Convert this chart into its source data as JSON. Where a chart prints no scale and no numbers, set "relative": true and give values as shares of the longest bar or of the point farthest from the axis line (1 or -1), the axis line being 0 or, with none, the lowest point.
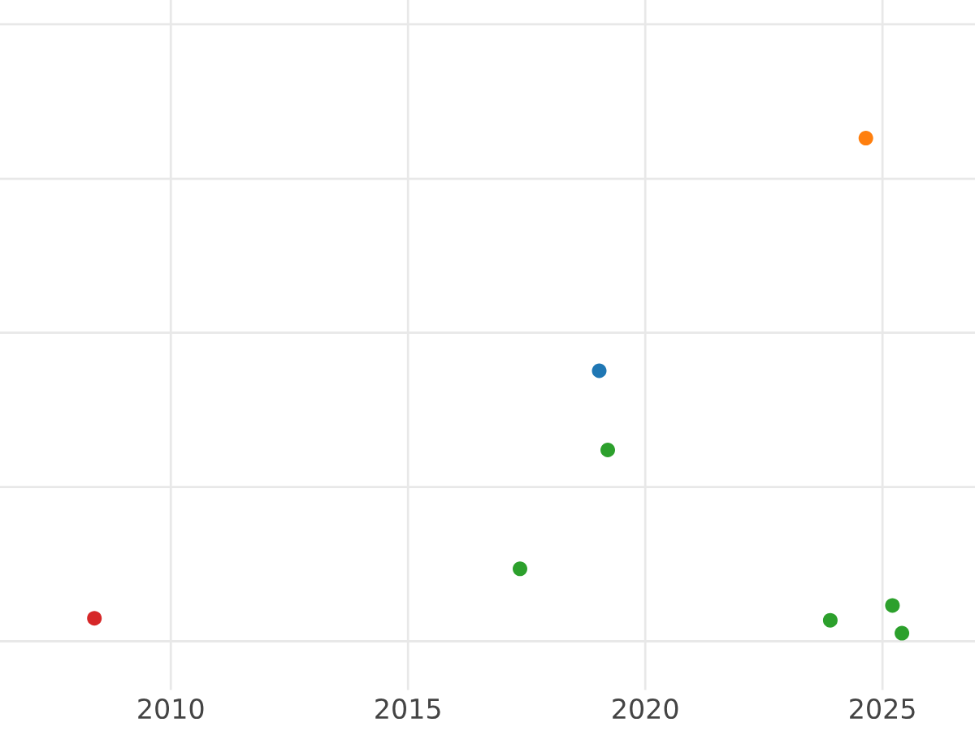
{
  "chart_data": {
    "type": "scatter",
    "relative": true,
    "xlim": [
      2006.4,
      2026.95
    ],
    "xticks": [
      2010,
      2015,
      2020,
      2025
    ],
    "grid": true,
    "marker": "circle",
    "tick_labels": "x",
    "series": [
      {
        "color": "#d62728",
        "x": [
          2008.39
        ],
        "values": [
          0.03
        ]
      },
      {
        "color": "#1f77b4",
        "x": [
          2019.03
        ],
        "values": [
          0.53
        ]
      },
      {
        "color": "#ff7f0e",
        "x": [
          2024.65
        ],
        "values": [
          1
        ]
      },
      {
        "color": "#2ca02c",
        "x": [
          2017.36,
          2019.21,
          2023.9,
          2025.21,
          2025.41
        ],
        "values": [
          0.13,
          0.37,
          0.026,
          0.056,
          0
        ]
      }
    ]
  }
}
